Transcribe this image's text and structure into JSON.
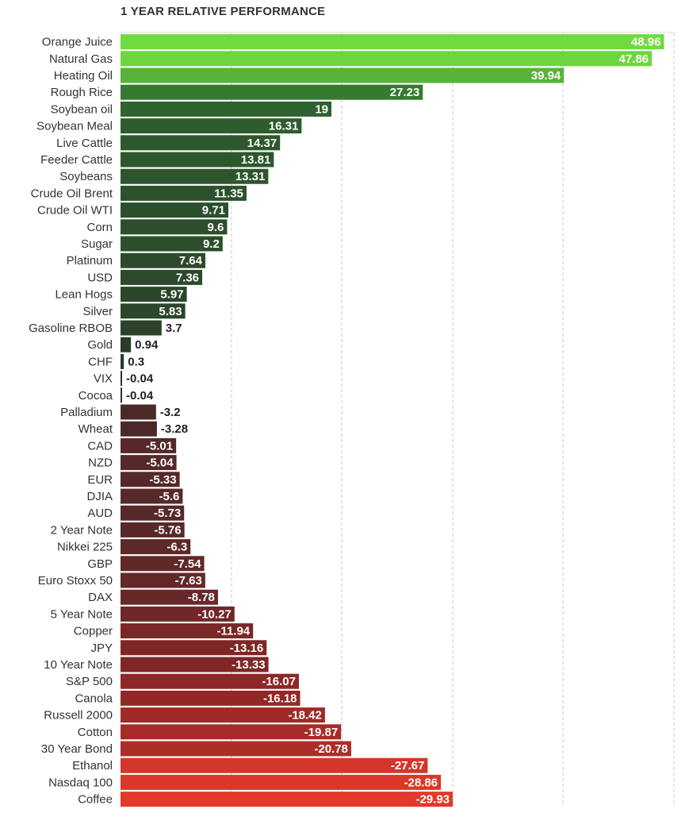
{
  "chart_data": {
    "type": "bar",
    "orientation": "horizontal",
    "title": "1 YEAR RELATIVE PERFORMANCE",
    "xlim": [
      -30,
      50
    ],
    "grid": true,
    "categories": [
      "Orange Juice",
      "Natural Gas",
      "Heating Oil",
      "Rough Rice",
      "Soybean oil",
      "Soybean Meal",
      "Live Cattle",
      "Feeder Cattle",
      "Soybeans",
      "Crude Oil Brent",
      "Crude Oil WTI",
      "Corn",
      "Sugar",
      "Platinum",
      "USD",
      "Lean Hogs",
      "Silver",
      "Gasoline RBOB",
      "Gold",
      "CHF",
      "VIX",
      "Cocoa",
      "Palladium",
      "Wheat",
      "CAD",
      "NZD",
      "EUR",
      "DJIA",
      "AUD",
      "2 Year Note",
      "Nikkei 225",
      "GBP",
      "Euro Stoxx 50",
      "DAX",
      "5 Year Note",
      "Copper",
      "JPY",
      "10 Year Note",
      "S&P 500",
      "Canola",
      "Russell 2000",
      "Cotton",
      "30 Year Bond",
      "Ethanol",
      "Nasdaq 100",
      "Coffee"
    ],
    "values": [
      48.96,
      47.86,
      39.94,
      27.23,
      19,
      16.31,
      14.37,
      13.81,
      13.31,
      11.35,
      9.71,
      9.6,
      9.2,
      7.64,
      7.36,
      5.97,
      5.83,
      3.7,
      0.94,
      0.3,
      -0.04,
      -0.04,
      -3.2,
      -3.28,
      -5.01,
      -5.04,
      -5.33,
      -5.6,
      -5.73,
      -5.76,
      -6.3,
      -7.54,
      -7.63,
      -8.78,
      -10.27,
      -11.94,
      -13.16,
      -13.33,
      -16.07,
      -16.18,
      -18.42,
      -19.87,
      -20.78,
      -27.67,
      -28.86,
      -29.93
    ]
  }
}
